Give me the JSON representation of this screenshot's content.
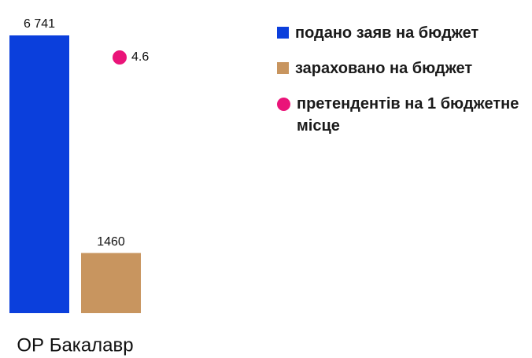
{
  "chart_data": {
    "type": "bar",
    "categories": [
      "ОР Бакалавр"
    ],
    "series": [
      {
        "name": "подано заяв на бюджет",
        "color": "#0b3fdc",
        "values": [
          6741
        ],
        "value_labels": [
          "6 741"
        ]
      },
      {
        "name": "зараховано на бюджет",
        "color": "#c8955f",
        "values": [
          1460
        ]
      },
      {
        "name": "претендентів на 1 бюджетне місце",
        "color": "#ea1479",
        "values": [
          4.6
        ],
        "type": "scatter",
        "axis": "y2"
      }
    ]
  }
}
